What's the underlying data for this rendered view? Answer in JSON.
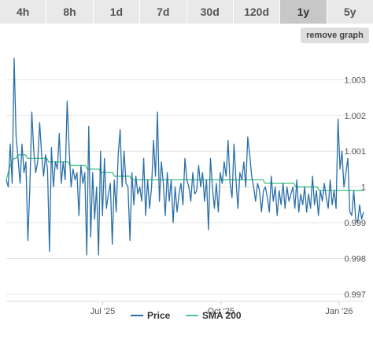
{
  "tabs": [
    {
      "label": "4h",
      "active": false
    },
    {
      "label": "8h",
      "active": false
    },
    {
      "label": "1d",
      "active": false
    },
    {
      "label": "7d",
      "active": false
    },
    {
      "label": "30d",
      "active": false
    },
    {
      "label": "120d",
      "active": false
    },
    {
      "label": "1y",
      "active": true
    },
    {
      "label": "5y",
      "active": false
    }
  ],
  "remove_graph_label": "remove graph",
  "chart_data": {
    "type": "line",
    "title": "",
    "xlabel": "",
    "ylabel": "",
    "x_ticks": [
      "Jul '25",
      "Oct '25",
      "Jan '26"
    ],
    "y_ticks": [
      "0.997",
      "0.998",
      "0.999",
      "1",
      "1.001",
      "1.002",
      "1.003"
    ],
    "ylim": [
      0.9968,
      1.0038
    ],
    "x_range": [
      "2025-04-17",
      "2026-01-20"
    ],
    "grid": true,
    "legend_position": "bottom",
    "series": [
      {
        "name": "Price",
        "color": "#2a6fa8",
        "values": [
          1.0002,
          1.0,
          1.0012,
          1.0001,
          1.0036,
          1.0014,
          1.0008,
          1.0001,
          1.0012,
          1.0004,
          1.0007,
          0.9985,
          1.0,
          1.0021,
          1.001,
          1.0004,
          1.0007,
          1.0018,
          1.0009,
          1.0003,
          1.0009,
          1.0005,
          0.9982,
          1.0011,
          1.0,
          1.0007,
          1.0005,
          1.0015,
          1.0001,
          1.0007,
          1.0002,
          1.0024,
          1.0011,
          1.0,
          1.0005,
          1.0002,
          1.0004,
          0.9992,
          1.0006,
          1.0001,
          1.0004,
          0.9981,
          1.0017,
          0.9986,
          1.0004,
          0.9991,
          1.0,
          0.9981,
          1.001,
          0.9992,
          1.0008,
          0.9994,
          0.9998,
          1.0001,
          0.9984,
          1.0002,
          0.9993,
          1.0009,
          1.0016,
          1.0,
          1.001,
          1.0001,
          1.0,
          0.9985,
          1.0004,
          0.9995,
          1.0003,
          0.9998,
          1.0,
          0.9996,
          1.0008,
          0.9992,
          1.0002,
          0.9994,
          1.0,
          1.0013,
          1.0003,
          1.0021,
          0.9996,
          1.0007,
          1.0001,
          0.9992,
          1.0004,
          0.9996,
          1.0002,
          0.999,
          1.0,
          0.9993,
          0.9998,
          1.0001,
          0.9995,
          1.0008,
          1.0002,
          1.0,
          0.9996,
          1.0004,
          0.9998,
          0.9999,
          1.0006,
          1.0,
          1.0004,
          0.9996,
          1.0002,
          0.9988,
          1.0008,
          1.0,
          0.9994,
          1.0001,
          0.9993,
          1.0004,
          1.0001,
          1.0007,
          1.0003,
          1.0013,
          1.0001,
          0.9997,
          1.0012,
          1.0002,
          0.9994,
          1.0004,
          1.0002,
          1.0007,
          1.0,
          1.0014,
          1.0009,
          1.0003,
          1.0,
          0.9996,
          1.0001,
          0.9999,
          0.9993,
          0.9999,
          1.0,
          0.9997,
          0.9993,
          1.0003,
          0.9996,
          1.0,
          0.9992,
          0.9999,
          0.9995,
          1.0001,
          0.9994,
          1.0,
          0.9996,
          0.9998,
          1.0,
          0.9994,
          1.0002,
          0.9993,
          0.9998,
          0.9995,
          1.0,
          0.9993,
          0.9998,
          0.9994,
          1.0003,
          0.9995,
          0.9999,
          0.9992,
          0.9999,
          0.9996,
          1.0001,
          0.9997,
          0.9994,
          1.0002,
          0.9995,
          0.9999,
          0.9994,
          1.0019,
          1.0005,
          1.001,
          1.0,
          1.0004,
          1.0008,
          0.9993,
          0.9992,
          0.9999,
          0.9991,
          0.999,
          0.9995,
          0.9991,
          0.9993
        ]
      },
      {
        "name": "SMA 200",
        "color": "#4fc98a",
        "values": [
          1.0002,
          1.0004,
          1.0006,
          1.0007,
          1.0008,
          1.0008,
          1.0009,
          1.0009,
          1.0009,
          1.0009,
          1.0009,
          1.0008,
          1.0008,
          1.0008,
          1.0008,
          1.0008,
          1.0008,
          1.0008,
          1.0008,
          1.0008,
          1.0008,
          1.0008,
          1.0007,
          1.0007,
          1.0007,
          1.0007,
          1.0007,
          1.0007,
          1.0007,
          1.0007,
          1.0007,
          1.0007,
          1.0007,
          1.0006,
          1.0006,
          1.0006,
          1.0006,
          1.0006,
          1.0006,
          1.0006,
          1.0006,
          1.0006,
          1.0005,
          1.0005,
          1.0005,
          1.0005,
          1.0005,
          1.0005,
          1.0005,
          1.0004,
          1.0004,
          1.0004,
          1.0004,
          1.0004,
          1.0004,
          1.0004,
          1.0003,
          1.0003,
          1.0003,
          1.0003,
          1.0003,
          1.0003,
          1.0003,
          1.0003,
          1.0003,
          1.0002,
          1.0002,
          1.0002,
          1.0002,
          1.0002,
          1.0002,
          1.0002,
          1.0002,
          1.0002,
          1.0002,
          1.0002,
          1.0002,
          1.0002,
          1.0002,
          1.0002,
          1.0002,
          1.0002,
          1.0002,
          1.0002,
          1.0002,
          1.0002,
          1.0002,
          1.0002,
          1.0002,
          1.0002,
          1.0002,
          1.0002,
          1.0002,
          1.0002,
          1.0002,
          1.0002,
          1.0002,
          1.0002,
          1.0002,
          1.0002,
          1.0002,
          1.0002,
          1.0002,
          1.0002,
          1.0002,
          1.0002,
          1.0002,
          1.0002,
          1.0002,
          1.0002,
          1.0002,
          1.0002,
          1.0002,
          1.0002,
          1.0002,
          1.0002,
          1.0002,
          1.0002,
          1.0002,
          1.0002,
          1.0002,
          1.0002,
          1.0002,
          1.0002,
          1.0002,
          1.0002,
          1.0002,
          1.0002,
          1.0002,
          1.0002,
          1.0002,
          1.0002,
          1.0002,
          1.0002,
          1.0001,
          1.0001,
          1.0001,
          1.0001,
          1.0001,
          1.0001,
          1.0001,
          1.0001,
          1.0001,
          1.0001,
          1.0001,
          1.0001,
          1.0001,
          1.0001,
          1.0001,
          1.0001,
          1.0,
          1.0,
          1.0,
          1.0,
          1.0,
          1.0,
          1.0,
          1.0,
          1.0,
          1.0,
          1.0,
          1.0,
          0.9999,
          0.9999,
          0.9999,
          0.9999,
          0.9999,
          0.9999,
          0.9999,
          0.9999,
          0.9999,
          0.9999,
          0.9999,
          0.9999,
          0.9999,
          0.9999,
          0.9999,
          0.9999,
          0.9999,
          0.9999,
          0.9999,
          0.9999,
          0.9999,
          0.9999,
          0.9999,
          0.9999
        ]
      }
    ]
  }
}
